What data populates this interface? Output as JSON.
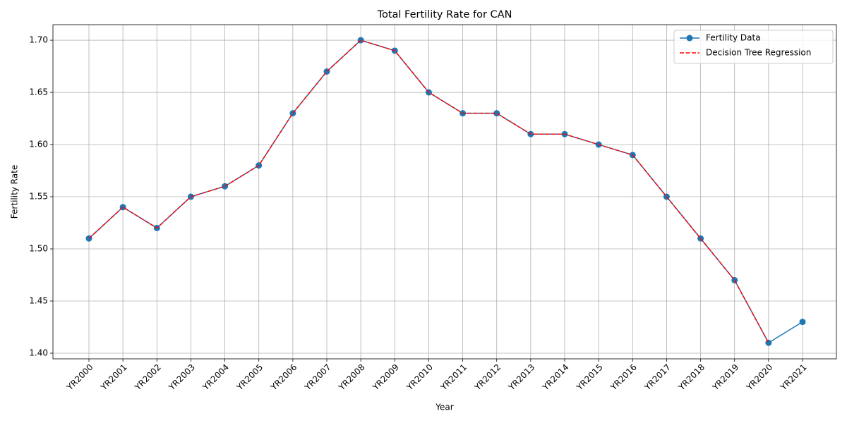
{
  "chart_data": {
    "type": "line",
    "title": "Total Fertility Rate for CAN",
    "x_label": "Year",
    "y_label": "Fertility Rate",
    "categories": [
      "YR2000",
      "YR2001",
      "YR2002",
      "YR2003",
      "YR2004",
      "YR2005",
      "YR2006",
      "YR2007",
      "YR2008",
      "YR2009",
      "YR2010",
      "YR2011",
      "YR2012",
      "YR2013",
      "YR2014",
      "YR2015",
      "YR2016",
      "YR2017",
      "YR2018",
      "YR2019",
      "YR2020",
      "YR2021"
    ],
    "series": [
      {
        "name": "Fertility Data",
        "color": "#1f77b4",
        "marker": "circle",
        "linestyle": "solid",
        "values": [
          1.51,
          1.54,
          1.52,
          1.55,
          1.56,
          1.58,
          1.63,
          1.67,
          1.7,
          1.69,
          1.65,
          1.63,
          1.63,
          1.61,
          1.61,
          1.6,
          1.59,
          1.55,
          1.51,
          1.47,
          1.41,
          1.43
        ]
      },
      {
        "name": "Decision Tree Regression",
        "color": "#ff0000",
        "marker": "none",
        "linestyle": "dashed",
        "values": [
          1.51,
          1.54,
          1.52,
          1.55,
          1.56,
          1.58,
          1.63,
          1.67,
          1.7,
          1.69,
          1.65,
          1.63,
          1.63,
          1.61,
          1.61,
          1.6,
          1.59,
          1.55,
          1.51,
          1.47,
          1.41,
          null
        ]
      }
    ],
    "ylim": [
      1.3946,
      1.7149
    ],
    "yticks": [
      {
        "value": 1.4,
        "label": "1.40"
      },
      {
        "value": 1.45,
        "label": "1.45"
      },
      {
        "value": 1.5,
        "label": "1.50"
      },
      {
        "value": 1.55,
        "label": "1.55"
      },
      {
        "value": 1.6,
        "label": "1.60"
      },
      {
        "value": 1.65,
        "label": "1.65"
      },
      {
        "value": 1.7,
        "label": "1.70"
      }
    ],
    "grid": true,
    "legend": "upper right"
  }
}
